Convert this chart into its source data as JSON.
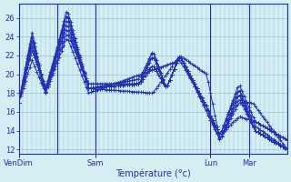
{
  "xlabel": "Température (°c)",
  "bg_color": "#d4eef4",
  "line_color": "#2030bb",
  "grid_color": "#99bbcc",
  "axis_label_color": "#2030bb",
  "tick_label_color": "#2030bb",
  "ylim": [
    11.5,
    27.5
  ],
  "yticks": [
    12,
    14,
    16,
    18,
    20,
    22,
    24,
    26
  ],
  "xtick_labels": [
    "VenDim",
    "Sam",
    "Lun",
    "Mar"
  ],
  "xtick_ratios": [
    0.0,
    0.286,
    0.714,
    0.857
  ],
  "vline_ratios": [
    0.0,
    0.143,
    0.286,
    0.714,
    0.857,
    1.0
  ],
  "n": 120,
  "linewidth": 0.7,
  "markersize": 2.5
}
